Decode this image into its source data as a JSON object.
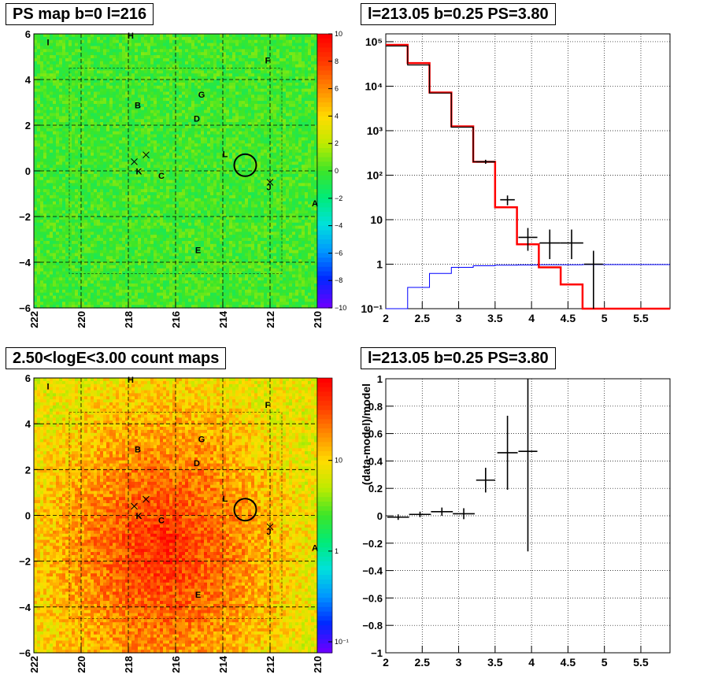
{
  "panels": {
    "ps_map_title": "PS map b=0 l=216",
    "spectrum_title": "l=213.05 b=0.25 PS=3.80",
    "count_map_title": "2.50<logE<3.00 count maps",
    "residual_title": "l=213.05 b=0.25 PS=3.80"
  },
  "chart_data": [
    {
      "type": "heatmap",
      "name": "ps-map",
      "x_ticks": [
        "222",
        "220",
        "218",
        "216",
        "214",
        "212",
        "210"
      ],
      "y_ticks": [
        "6",
        "4",
        "2",
        "0",
        "−2",
        "−4",
        "−6"
      ],
      "colorbar_ticks": [
        "10",
        "8",
        "6",
        "4",
        "2",
        "0",
        "−2",
        "−4",
        "−6",
        "−8",
        "−10"
      ],
      "colorbar_range": [
        -10,
        10
      ],
      "xlim": [
        222,
        210
      ],
      "ylim": [
        -6,
        6
      ],
      "roi_box": {
        "l": [
          220.5,
          211.5
        ],
        "b": [
          -4.5,
          4.5
        ]
      },
      "circle": {
        "l": 213.05,
        "b": 0.25
      },
      "crosses": [
        {
          "l": 217.75,
          "b": 0.4
        },
        {
          "l": 217.25,
          "b": 0.7
        },
        {
          "l": 212.0,
          "b": -0.5
        }
      ],
      "source_labels": [
        {
          "t": "I",
          "l": 221.4,
          "b": 5.5
        },
        {
          "t": "H",
          "l": 217.9,
          "b": 5.8
        },
        {
          "t": "F",
          "l": 212.1,
          "b": 4.7
        },
        {
          "t": "G",
          "l": 214.9,
          "b": 3.2
        },
        {
          "t": "B",
          "l": 217.6,
          "b": 2.75
        },
        {
          "t": "D",
          "l": 215.1,
          "b": 2.15
        },
        {
          "t": "L",
          "l": 213.9,
          "b": 0.6
        },
        {
          "t": "K",
          "l": 217.55,
          "b": -0.15
        },
        {
          "t": "C",
          "l": 216.6,
          "b": -0.35
        },
        {
          "t": "J",
          "l": 212.05,
          "b": -0.85
        },
        {
          "t": "A",
          "l": 210.1,
          "b": -1.55
        },
        {
          "t": "E",
          "l": 215.05,
          "b": -3.6
        }
      ]
    },
    {
      "type": "line",
      "name": "spectrum",
      "x_ticks": [
        "2",
        "2.5",
        "3",
        "3.5",
        "4",
        "4.5",
        "5",
        "5.5"
      ],
      "y_ticks": [
        "10⁻¹",
        "1",
        "10",
        "10²",
        "10³",
        "10⁴",
        "10⁵"
      ],
      "xlim": [
        2,
        5.9
      ],
      "ylim": [
        0.1,
        150000
      ],
      "log_y": true,
      "grid": true,
      "bin_edges": [
        2.0,
        2.3,
        2.6,
        2.9,
        3.2,
        3.5,
        3.8,
        4.1,
        4.4,
        4.7,
        5.0,
        5.9
      ],
      "series": [
        {
          "color": "#ff0000",
          "values": [
            85000,
            33000,
            7200,
            1250,
            200,
            19,
            2.8,
            0.85,
            0.35,
            0.1,
            0.1
          ]
        },
        {
          "color": "#000000",
          "values": [
            80000,
            30000,
            7000,
            1200,
            200,
            28,
            3.8,
            2.8,
            2.7,
            0.9,
            null
          ]
        },
        {
          "color": "#0000ff",
          "values": [
            0.05,
            0.3,
            0.62,
            0.85,
            0.92,
            0.95,
            0.96,
            0.97,
            0.97,
            0.98,
            0.98
          ]
        }
      ],
      "data_points": [
        {
          "x": 3.37,
          "xerr": 0.13,
          "y": 200,
          "ylo": 180,
          "yhi": 222
        },
        {
          "x": 3.67,
          "xerr": 0.1,
          "y": 28,
          "ylo": 21,
          "yhi": 35
        },
        {
          "x": 3.95,
          "xerr": 0.13,
          "y": 4,
          "ylo": 2,
          "yhi": 6.5
        },
        {
          "x": 4.25,
          "xerr": 0.14,
          "y": 3,
          "ylo": 1.3,
          "yhi": 6
        },
        {
          "x": 4.55,
          "xerr": 0.16,
          "y": 3,
          "ylo": 1.3,
          "yhi": 6
        },
        {
          "x": 4.85,
          "xerr": 0.13,
          "y": 1,
          "ylo": 0.1,
          "yhi": 2
        }
      ]
    },
    {
      "type": "heatmap",
      "name": "count-map",
      "x_ticks": [
        "222",
        "220",
        "218",
        "216",
        "214",
        "212",
        "210"
      ],
      "y_ticks": [
        "6",
        "4",
        "2",
        "0",
        "−2",
        "−4",
        "−6"
      ],
      "colorbar_ticks": [
        "10",
        "1",
        "10⁻¹"
      ],
      "xlim": [
        222,
        210
      ],
      "ylim": [
        -6,
        6
      ]
    },
    {
      "type": "scatter",
      "name": "residual",
      "x_ticks": [
        "2",
        "2.5",
        "3",
        "3.5",
        "4",
        "4.5",
        "5",
        "5.5"
      ],
      "y_ticks": [
        "1",
        "0.8",
        "0.6",
        "0.4",
        "0.2",
        "0",
        "−0.2",
        "−0.4",
        "−0.6",
        "−0.8",
        "−1"
      ],
      "ylabel": "(data-model)/model",
      "xlim": [
        2,
        5.9
      ],
      "ylim": [
        -1,
        1
      ],
      "grid": true,
      "points": [
        {
          "x": 2.17,
          "xerr": 0.15,
          "y": -0.01,
          "err": 0.02
        },
        {
          "x": 2.47,
          "xerr": 0.15,
          "y": 0.01,
          "err": 0.02
        },
        {
          "x": 2.77,
          "xerr": 0.15,
          "y": 0.03,
          "err": 0.03
        },
        {
          "x": 3.07,
          "xerr": 0.15,
          "y": 0.015,
          "err": 0.04
        },
        {
          "x": 3.37,
          "xerr": 0.13,
          "y": 0.26,
          "err": 0.09
        },
        {
          "x": 3.67,
          "xerr": 0.14,
          "y": 0.46,
          "err": 0.27
        },
        {
          "x": 3.95,
          "xerr": 0.13,
          "y": 0.47,
          "err": 0.73
        }
      ]
    }
  ]
}
